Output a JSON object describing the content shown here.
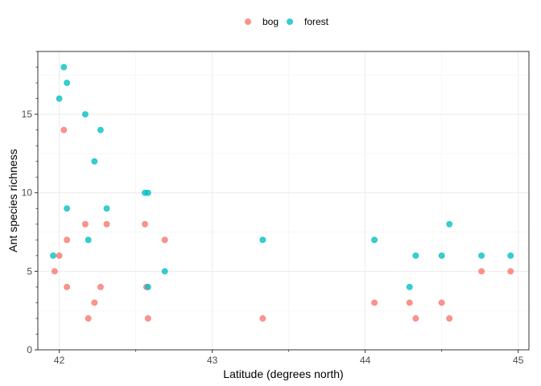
{
  "chart_data": {
    "type": "scatter",
    "xlabel": "Latitude (degrees north)",
    "ylabel": "Ant species richness",
    "xlim": [
      41.86,
      45.07
    ],
    "ylim": [
      0,
      19
    ],
    "xticks": [
      42,
      43,
      44,
      45
    ],
    "yticks": [
      0,
      5,
      10,
      15
    ],
    "grid": true,
    "legend_position": "top",
    "series": [
      {
        "name": "bog",
        "color": "#F8766D",
        "points": [
          [
            41.97,
            5
          ],
          [
            42.0,
            6
          ],
          [
            42.03,
            14
          ],
          [
            42.05,
            7
          ],
          [
            42.05,
            4
          ],
          [
            42.17,
            8
          ],
          [
            42.19,
            2
          ],
          [
            42.23,
            3
          ],
          [
            42.27,
            4
          ],
          [
            42.31,
            8
          ],
          [
            42.56,
            8
          ],
          [
            42.57,
            4
          ],
          [
            42.58,
            2
          ],
          [
            42.69,
            7
          ],
          [
            43.33,
            2
          ],
          [
            44.06,
            3
          ],
          [
            44.29,
            3
          ],
          [
            44.33,
            2
          ],
          [
            44.5,
            3
          ],
          [
            44.55,
            2
          ],
          [
            44.76,
            5
          ],
          [
            44.95,
            5
          ]
        ]
      },
      {
        "name": "forest",
        "color": "#00BFC4",
        "points": [
          [
            41.96,
            6
          ],
          [
            42.0,
            16
          ],
          [
            42.03,
            18
          ],
          [
            42.05,
            17
          ],
          [
            42.05,
            9
          ],
          [
            42.17,
            15
          ],
          [
            42.19,
            7
          ],
          [
            42.23,
            12
          ],
          [
            42.27,
            14
          ],
          [
            42.31,
            9
          ],
          [
            42.56,
            10
          ],
          [
            42.58,
            10
          ],
          [
            42.58,
            4
          ],
          [
            42.69,
            5
          ],
          [
            43.33,
            7
          ],
          [
            44.06,
            7
          ],
          [
            44.29,
            4
          ],
          [
            44.33,
            6
          ],
          [
            44.5,
            6
          ],
          [
            44.55,
            8
          ],
          [
            44.76,
            6
          ],
          [
            44.95,
            6
          ]
        ]
      }
    ]
  }
}
